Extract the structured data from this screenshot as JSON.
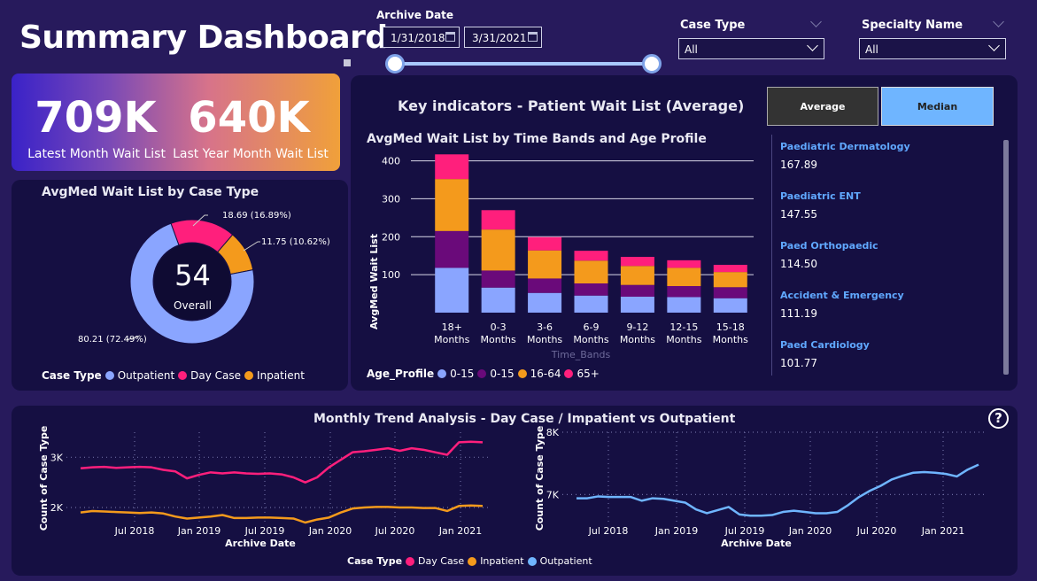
{
  "title": "Summary Dashboard",
  "filters": {
    "archive_label": "Archive Date",
    "date_start": "1/31/2018",
    "date_end": "3/31/2021",
    "case_type_label": "Case Type",
    "case_type_value": "All",
    "specialty_label": "Specialty Name",
    "specialty_value": "All",
    "date_range_fraction": [
      0.0,
      1.0
    ]
  },
  "kpis": [
    {
      "value": "709K",
      "label": "Latest Month Wait List"
    },
    {
      "value": "640K",
      "label": "Last Year Month Wait List"
    }
  ],
  "donut": {
    "title": "AvgMed Wait List by Case Type",
    "center_value": "54",
    "center_label": "Overall",
    "legend_title": "Case Type",
    "slices": [
      {
        "name": "Outpatient",
        "value": 80.21,
        "label": "80.21 (72.49%)",
        "color": "#8aa5ff"
      },
      {
        "name": "Day Case",
        "value": 18.69,
        "label": "18.69 (16.89%)",
        "color": "#ff1f7c"
      },
      {
        "name": "Inpatient",
        "value": 11.75,
        "label": "11.75 (10.62%)",
        "color": "#f49a1c"
      }
    ]
  },
  "key_indicators": {
    "title": "Key indicators - Patient Wait List (Average)",
    "buttons": [
      "Average",
      "Median"
    ],
    "active_button": "Median"
  },
  "bar_chart": {
    "title": "AvgMed Wait List by Time Bands and Age Profile",
    "xlabel": "Time_Bands",
    "ylabel": "AvgMed Wait List",
    "yticks": [
      "100",
      "200",
      "300",
      "400"
    ],
    "legend_title": "Age_Profile",
    "legend": [
      {
        "name": "0-15",
        "color": "#8aa5ff"
      },
      {
        "name": "0-15",
        "color": "#6a0a7a"
      },
      {
        "name": "16-64",
        "color": "#f49a1c"
      },
      {
        "name": "65+",
        "color": "#ff1f7c"
      }
    ]
  },
  "chart_data": [
    {
      "type": "bar",
      "stacked": true,
      "title": "AvgMed Wait List by Time Bands and Age Profile",
      "xlabel": "Time_Bands",
      "ylabel": "AvgMed Wait List",
      "categories": [
        [
          "18+",
          "Months"
        ],
        [
          "0-3",
          "Months"
        ],
        [
          "3-6",
          "Months"
        ],
        [
          "6-9",
          "Months"
        ],
        [
          "9-12",
          "Months"
        ],
        [
          "12-15",
          "Months"
        ],
        [
          "15-18",
          "Months"
        ]
      ],
      "ylim": [
        0,
        420
      ],
      "series": [
        {
          "name": "0-15",
          "color": "#8aa5ff",
          "values": [
            118,
            66,
            52,
            45,
            42,
            41,
            38
          ]
        },
        {
          "name": "0-15",
          "color": "#6a0a7a",
          "values": [
            97,
            45,
            38,
            32,
            31,
            29,
            29
          ]
        },
        {
          "name": "16-64",
          "color": "#f49a1c",
          "values": [
            137,
            108,
            74,
            60,
            50,
            48,
            40
          ]
        },
        {
          "name": "65+",
          "color": "#ff1f7c",
          "values": [
            65,
            51,
            35,
            26,
            24,
            20,
            19
          ]
        }
      ]
    },
    {
      "type": "pie",
      "title": "AvgMed Wait List by Case Type",
      "categories": [
        "Outpatient",
        "Day Case",
        "Inpatient"
      ],
      "values": [
        80.21,
        18.69,
        11.75
      ]
    },
    {
      "type": "line",
      "title": "Monthly Trend Analysis - Day Case / Impatient vs Outpatient",
      "xlabel": "Archive Date",
      "ylabel": "Count of Case Type",
      "xticks": [
        "Jul 2018",
        "Jan 2019",
        "Jul 2019",
        "Jan 2020",
        "Jul 2020",
        "Jan 2021"
      ],
      "yticks": [
        "2K",
        "3K"
      ],
      "ylim": [
        1700,
        3500
      ],
      "series": [
        {
          "name": "Day Case",
          "color": "#ff1f7c",
          "values": [
            2780,
            2800,
            2810,
            2790,
            2800,
            2810,
            2800,
            2750,
            2720,
            2580,
            2650,
            2700,
            2680,
            2700,
            2680,
            2670,
            2680,
            2660,
            2600,
            2500,
            2600,
            2800,
            2950,
            3100,
            3120,
            3150,
            3180,
            3130,
            3180,
            3150,
            3100,
            3050,
            3300,
            3310,
            3300
          ]
        },
        {
          "name": "Inpatient",
          "color": "#f49a1c",
          "values": [
            1900,
            1930,
            1920,
            1910,
            1900,
            1890,
            1900,
            1880,
            1820,
            1780,
            1800,
            1820,
            1850,
            1790,
            1790,
            1800,
            1800,
            1790,
            1780,
            1700,
            1760,
            1800,
            1900,
            1980,
            2000,
            2010,
            2010,
            2000,
            2000,
            1990,
            1990,
            1930,
            2030,
            2040,
            2030
          ]
        }
      ]
    },
    {
      "type": "line",
      "title": "Monthly Trend Analysis - Day Case / Impatient vs Outpatient",
      "xlabel": "Archive Date",
      "ylabel": "Count of Case Type",
      "xticks": [
        "Jul 2018",
        "Jan 2019",
        "Jul 2019",
        "Jan 2020",
        "Jul 2020",
        "Jan 2021"
      ],
      "yticks": [
        "7K",
        "8K"
      ],
      "ylim": [
        6550,
        8000
      ],
      "series": [
        {
          "name": "Outpatient",
          "color": "#6fb5ff",
          "values": [
            6940,
            6940,
            6970,
            6960,
            6960,
            6960,
            6900,
            6940,
            6930,
            6900,
            6870,
            6760,
            6700,
            6750,
            6800,
            6680,
            6660,
            6660,
            6670,
            6720,
            6740,
            6720,
            6700,
            6700,
            6720,
            6830,
            6960,
            7060,
            7140,
            7240,
            7300,
            7350,
            7360,
            7350,
            7330,
            7290,
            7400,
            7480
          ]
        }
      ]
    }
  ],
  "specialties": [
    {
      "name": "Paediatric Dermatology",
      "value": "167.89"
    },
    {
      "name": "Paediatric ENT",
      "value": "147.55"
    },
    {
      "name": "Paed Orthopaedic",
      "value": "114.50"
    },
    {
      "name": "Accident & Emergency",
      "value": "111.19"
    },
    {
      "name": "Paed Cardiology",
      "value": "101.77"
    }
  ],
  "trend": {
    "title": "Monthly Trend Analysis - Day Case / Impatient vs Outpatient",
    "xlabel": "Archive Date",
    "ylabel": "Count of Case Type",
    "legend_title": "Case Type",
    "legend": [
      {
        "name": "Day Case",
        "color": "#ff1f7c"
      },
      {
        "name": "Inpatient",
        "color": "#f49a1c"
      },
      {
        "name": "Outpatient",
        "color": "#6fb5ff"
      }
    ],
    "help_icon": "question-circle-icon"
  }
}
